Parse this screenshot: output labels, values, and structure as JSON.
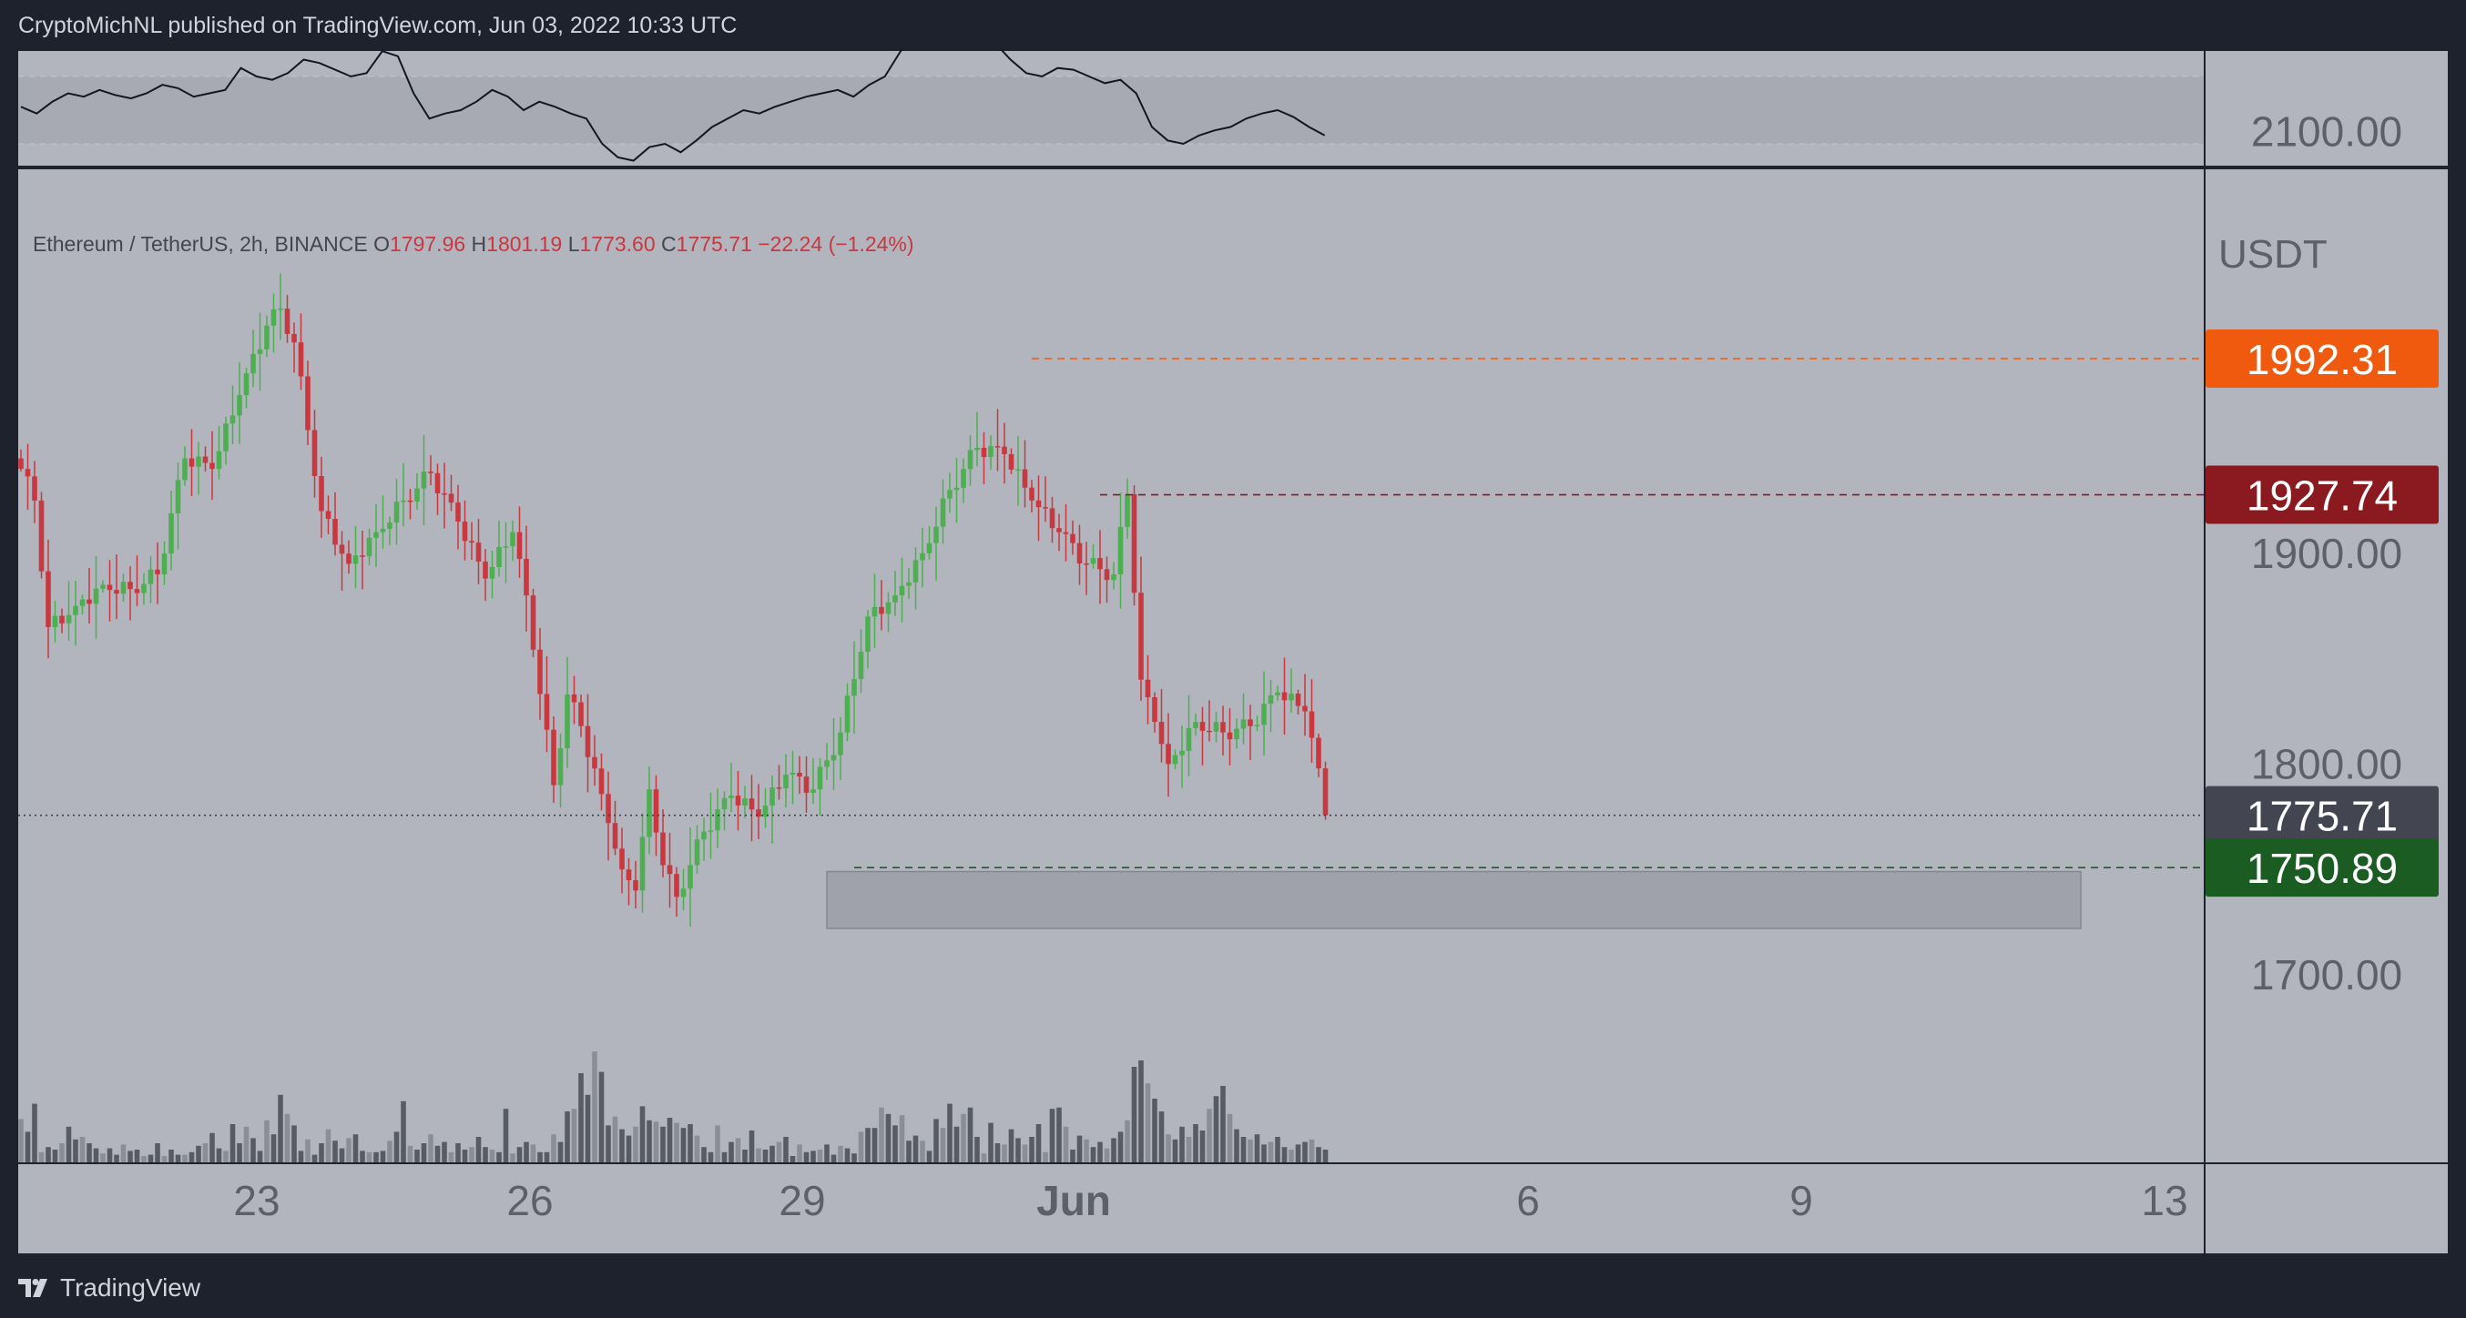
{
  "header": {
    "published_text": "CryptoMichNL published on TradingView.com, Jun 03, 2022 10:33 UTC"
  },
  "footer": {
    "brand": "TradingView"
  },
  "colors": {
    "bg": "#b2b5be",
    "frame": "#1e222d",
    "up": "#4caf50",
    "down": "#c9373f",
    "orange": "#f05a0f",
    "maroon": "#8b1a20",
    "green": "#1a5c22",
    "current": "#434651"
  },
  "chart_data": {
    "type": "candlestick",
    "symbol_line": "Ethereum / TetherUS, 2h, BINANCE",
    "ohlc": {
      "o_label": "O",
      "open": "1797.96",
      "h_label": "H",
      "high": "1801.19",
      "l_label": "L",
      "low": "1773.60",
      "c_label": "C",
      "close": "1775.71",
      "change": "−22.24 (−1.24%)"
    },
    "currency": "USDT",
    "y_ticks": [
      "2100.00",
      "1900.00",
      "1800.00",
      "1700.00"
    ],
    "x_ticks": [
      "23",
      "26",
      "29",
      "Jun",
      "6",
      "9",
      "13"
    ],
    "price_labels": [
      {
        "value": "1992.31",
        "role": "resistance"
      },
      {
        "value": "1927.74",
        "role": "support"
      },
      {
        "value": "1775.71",
        "role": "last"
      },
      {
        "value": "1750.89",
        "role": "support"
      }
    ],
    "zone": {
      "top": 1749,
      "bottom": 1722
    },
    "anchors": [
      [
        0,
        1940
      ],
      [
        2,
        1925
      ],
      [
        4,
        1865
      ],
      [
        8,
        1875
      ],
      [
        12,
        1885
      ],
      [
        16,
        1883
      ],
      [
        20,
        1890
      ],
      [
        24,
        1945
      ],
      [
        28,
        1940
      ],
      [
        32,
        1975
      ],
      [
        36,
        2008
      ],
      [
        38,
        2016
      ],
      [
        40,
        2000
      ],
      [
        44,
        1920
      ],
      [
        48,
        1895
      ],
      [
        52,
        1910
      ],
      [
        56,
        1925
      ],
      [
        60,
        1938
      ],
      [
        64,
        1915
      ],
      [
        68,
        1888
      ],
      [
        72,
        1910
      ],
      [
        74,
        1880
      ],
      [
        78,
        1790
      ],
      [
        80,
        1833
      ],
      [
        82,
        1818
      ],
      [
        86,
        1772
      ],
      [
        88,
        1750
      ],
      [
        90,
        1740
      ],
      [
        92,
        1788
      ],
      [
        94,
        1752
      ],
      [
        96,
        1737
      ],
      [
        100,
        1768
      ],
      [
        104,
        1785
      ],
      [
        108,
        1775
      ],
      [
        112,
        1795
      ],
      [
        116,
        1788
      ],
      [
        120,
        1815
      ],
      [
        124,
        1870
      ],
      [
        128,
        1880
      ],
      [
        132,
        1900
      ],
      [
        136,
        1930
      ],
      [
        140,
        1950
      ],
      [
        144,
        1947
      ],
      [
        148,
        1925
      ],
      [
        152,
        1910
      ],
      [
        156,
        1895
      ],
      [
        160,
        1890
      ],
      [
        162,
        1928
      ],
      [
        164,
        1840
      ],
      [
        166,
        1820
      ],
      [
        168,
        1800
      ],
      [
        172,
        1820
      ],
      [
        176,
        1815
      ],
      [
        180,
        1818
      ],
      [
        184,
        1834
      ],
      [
        188,
        1825
      ],
      [
        190,
        1797.96
      ],
      [
        191,
        1775.71
      ]
    ],
    "volumes": [
      34,
      24,
      46,
      8,
      12,
      10,
      15,
      28,
      18,
      20,
      15,
      11,
      7,
      11,
      6,
      14,
      9,
      10,
      5,
      6,
      15,
      5,
      10,
      6,
      6,
      8,
      13,
      15,
      23,
      11,
      9,
      30,
      15,
      28,
      19,
      9,
      33,
      22,
      53,
      38,
      29,
      9,
      18,
      6,
      15,
      26,
      17,
      11,
      19,
      22,
      9,
      8,
      8,
      9,
      17,
      24,
      48,
      13,
      10,
      15,
      22,
      13,
      16,
      8,
      15,
      10,
      12,
      20,
      12,
      10,
      8,
      42,
      7,
      12,
      16,
      14,
      8,
      8,
      22,
      16,
      40,
      42,
      70,
      53,
      87,
      71,
      29,
      36,
      26,
      21,
      28,
      44,
      33,
      32,
      28,
      35,
      31,
      27,
      30,
      21,
      12,
      8,
      29,
      8,
      16,
      19,
      10,
      25,
      11,
      10,
      13,
      16,
      20,
      5,
      14,
      8,
      9,
      10,
      14,
      6,
      13,
      11,
      7,
      24,
      27,
      27,
      43,
      38,
      29,
      37,
      17,
      21,
      17,
      9,
      34,
      27,
      46,
      28,
      38,
      43,
      20,
      7,
      31,
      15,
      14,
      26,
      19,
      14,
      20,
      30,
      8,
      42,
      43,
      28,
      10,
      21,
      18,
      12,
      16,
      11,
      19,
      24,
      33,
      75,
      80,
      62,
      50,
      40,
      22,
      18,
      28,
      20,
      30,
      25,
      42,
      52,
      60,
      38,
      26,
      20,
      18,
      22,
      14,
      16,
      20,
      12,
      10,
      14,
      16,
      18,
      12,
      10
    ],
    "oscillator": {
      "values": [
        0.52,
        0.48,
        0.55,
        0.6,
        0.58,
        0.62,
        0.59,
        0.57,
        0.6,
        0.65,
        0.63,
        0.58,
        0.6,
        0.62,
        0.75,
        0.7,
        0.68,
        0.72,
        0.8,
        0.78,
        0.74,
        0.7,
        0.72,
        0.85,
        0.82,
        0.6,
        0.45,
        0.48,
        0.5,
        0.55,
        0.62,
        0.58,
        0.5,
        0.55,
        0.52,
        0.48,
        0.45,
        0.3,
        0.22,
        0.2,
        0.28,
        0.3,
        0.25,
        0.32,
        0.4,
        0.45,
        0.5,
        0.48,
        0.52,
        0.55,
        0.58,
        0.6,
        0.62,
        0.58,
        0.65,
        0.7,
        0.85,
        0.95,
        0.98,
        0.92,
        0.88,
        0.94,
        0.9,
        0.8,
        0.72,
        0.7,
        0.75,
        0.74,
        0.7,
        0.66,
        0.68,
        0.6,
        0.4,
        0.32,
        0.3,
        0.35,
        0.38,
        0.4,
        0.45,
        0.48,
        0.5,
        0.46,
        0.4,
        0.35
      ],
      "bands": [
        0.3,
        0.7
      ]
    }
  }
}
